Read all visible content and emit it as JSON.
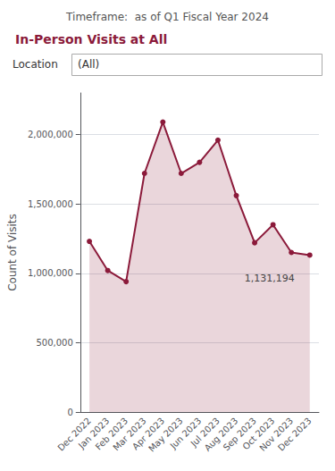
{
  "chart_data": {
    "type": "area",
    "title": "In-Person Visits at All",
    "subtitle": "Timeframe:  as of Q1 Fiscal Year 2024",
    "ylabel": "Count of Visits",
    "categories": [
      "Dec 2022",
      "Jan 2023",
      "Feb 2023",
      "Mar 2023",
      "Apr 2023",
      "May 2023",
      "Jun 2023",
      "Jul 2023",
      "Aug 2023",
      "Sep 2023",
      "Oct 2023",
      "Nov 2023",
      "Dec 2023"
    ],
    "values": [
      1230000,
      1020000,
      940000,
      1720000,
      2090000,
      1720000,
      1800000,
      1960000,
      1560000,
      1220000,
      1350000,
      1150000,
      1131194
    ],
    "color": "#8B1A3A",
    "marker": "circle",
    "ylim": [
      0,
      2300000
    ],
    "yticks": [
      0,
      {
        "value": 500000,
        "label": "500,000"
      },
      {
        "value": 1000000,
        "label": "1,000,000"
      },
      {
        "value": 1500000,
        "label": "1,500,000"
      },
      {
        "value": 2000000,
        "label": "2,000,000"
      }
    ],
    "grid": true,
    "annotations": [
      {
        "text": "Location"
      },
      {
        "text": "(All)"
      },
      {
        "text": "1,131,194",
        "x": "Dec 2023",
        "y": 1131194
      }
    ]
  }
}
